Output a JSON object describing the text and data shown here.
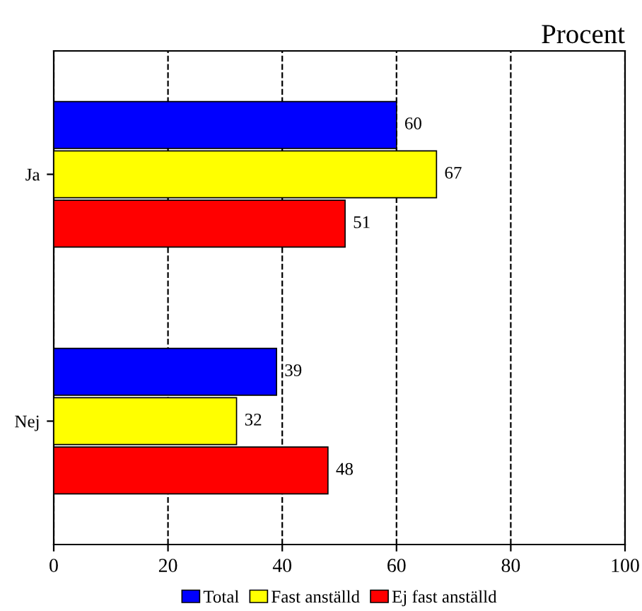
{
  "chart_data": {
    "type": "bar",
    "orientation": "horizontal",
    "title": "Procent",
    "categories": [
      "Ja",
      "Nej"
    ],
    "series": [
      {
        "name": "Total",
        "color": "#0000ff",
        "values": [
          60,
          39
        ]
      },
      {
        "name": "Fast anställd",
        "color": "#ffff00",
        "values": [
          67,
          32
        ]
      },
      {
        "name": "Ej fast anställd",
        "color": "#ff0000",
        "values": [
          51,
          48
        ]
      }
    ],
    "xlim": [
      0,
      100
    ],
    "xticks": [
      0,
      20,
      40,
      60,
      80,
      100
    ],
    "grid": "x",
    "line_style": "dashed",
    "legend": "bottom",
    "data_labels": true
  }
}
